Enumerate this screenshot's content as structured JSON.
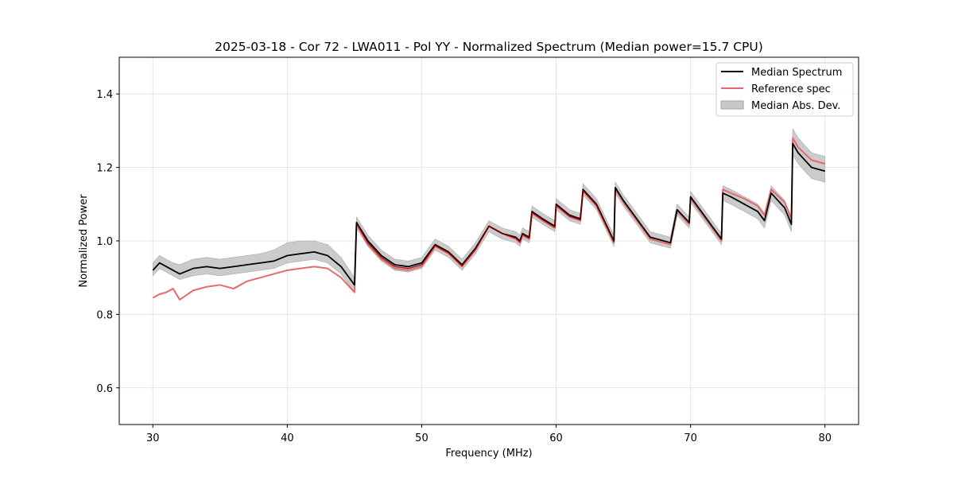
{
  "chart_data": {
    "type": "line",
    "title": "2025-03-18 - Cor 72 - LWA011 - Pol YY - Normalized Spectrum (Median power=15.7 CPU)",
    "xlabel": "Frequency (MHz)",
    "ylabel": "Normalized Power",
    "xlim": [
      27.5,
      82.5
    ],
    "ylim": [
      0.5,
      1.5
    ],
    "xticks": [
      30,
      40,
      50,
      60,
      70,
      80
    ],
    "yticks": [
      0.6,
      0.8,
      1.0,
      1.2,
      1.4
    ],
    "xtick_labels": [
      "30",
      "40",
      "50",
      "60",
      "70",
      "80"
    ],
    "ytick_labels": [
      "0.6",
      "0.8",
      "1.0",
      "1.2",
      "1.4"
    ],
    "grid": true,
    "legend_position": "top-right",
    "legend": [
      "Median Spectrum",
      "Reference spec",
      "Median Abs. Dev."
    ],
    "colors": {
      "median": "#000000",
      "reference": "#e8696b",
      "mad": "#c8c8c8",
      "overlap": "#8b0000"
    },
    "series": [
      {
        "name": "Median Spectrum",
        "x": [
          30,
          30.5,
          31,
          31.5,
          32,
          33,
          34,
          35,
          36,
          37,
          38,
          39,
          40,
          41,
          42,
          43,
          44,
          45,
          45.15,
          46,
          47,
          48,
          49,
          50,
          51,
          52,
          53,
          54,
          55,
          56,
          57,
          57.3,
          57.5,
          58,
          58.2,
          59,
          59.9,
          60,
          61,
          61.8,
          62,
          63,
          64.3,
          64.4,
          65,
          66,
          67,
          68,
          68.5,
          69,
          69.9,
          70,
          71,
          72.3,
          72.4,
          73,
          74,
          75,
          75.5,
          76,
          77,
          77.5,
          77.6,
          78,
          79,
          80
        ],
        "y": [
          0.92,
          0.94,
          0.93,
          0.92,
          0.91,
          0.925,
          0.93,
          0.925,
          0.93,
          0.935,
          0.94,
          0.945,
          0.96,
          0.965,
          0.97,
          0.96,
          0.93,
          0.88,
          1.05,
          1.0,
          0.96,
          0.935,
          0.93,
          0.94,
          0.99,
          0.97,
          0.935,
          0.98,
          1.04,
          1.02,
          1.01,
          1.0,
          1.02,
          1.01,
          1.08,
          1.06,
          1.04,
          1.1,
          1.07,
          1.06,
          1.14,
          1.1,
          1.0,
          1.145,
          1.11,
          1.06,
          1.01,
          1.0,
          0.995,
          1.085,
          1.05,
          1.12,
          1.07,
          1.005,
          1.13,
          1.12,
          1.1,
          1.08,
          1.055,
          1.13,
          1.09,
          1.045,
          1.265,
          1.24,
          1.2,
          1.19
        ]
      },
      {
        "name": "Reference spec",
        "x": [
          30,
          30.5,
          31,
          31.5,
          32,
          33,
          34,
          35,
          36,
          37,
          38,
          39,
          40,
          41,
          42,
          43,
          44,
          45,
          45.15,
          46,
          47,
          48,
          49,
          50,
          51,
          52,
          53,
          54,
          55,
          56,
          57,
          57.3,
          57.5,
          58,
          58.2,
          59,
          59.9,
          60,
          61,
          61.8,
          62,
          63,
          64.3,
          64.4,
          65,
          66,
          67,
          68,
          68.5,
          69,
          69.9,
          70,
          71,
          72.3,
          72.4,
          73,
          74,
          75,
          75.5,
          76,
          77,
          77.5,
          77.6,
          78,
          79,
          80
        ],
        "y": [
          0.845,
          0.855,
          0.86,
          0.87,
          0.84,
          0.865,
          0.875,
          0.88,
          0.87,
          0.89,
          0.9,
          0.91,
          0.92,
          0.925,
          0.93,
          0.925,
          0.9,
          0.86,
          1.045,
          0.99,
          0.95,
          0.925,
          0.92,
          0.93,
          0.985,
          0.965,
          0.93,
          0.975,
          1.04,
          1.02,
          1.005,
          0.995,
          1.015,
          1.005,
          1.075,
          1.055,
          1.035,
          1.095,
          1.065,
          1.055,
          1.135,
          1.095,
          0.995,
          1.14,
          1.105,
          1.055,
          1.005,
          0.995,
          0.99,
          1.08,
          1.045,
          1.115,
          1.065,
          1.0,
          1.14,
          1.13,
          1.115,
          1.095,
          1.07,
          1.14,
          1.105,
          1.06,
          1.28,
          1.255,
          1.22,
          1.21
        ]
      },
      {
        "name": "Median Abs. Dev.",
        "x": [
          30,
          30.5,
          31,
          31.5,
          32,
          33,
          34,
          35,
          36,
          37,
          38,
          39,
          40,
          41,
          42,
          43,
          44,
          45,
          45.15,
          46,
          47,
          48,
          49,
          50,
          51,
          52,
          53,
          54,
          55,
          56,
          57,
          57.3,
          57.5,
          58,
          58.2,
          59,
          59.9,
          60,
          61,
          61.8,
          62,
          63,
          64.3,
          64.4,
          65,
          66,
          67,
          68,
          68.5,
          69,
          69.9,
          70,
          71,
          72.3,
          72.4,
          73,
          74,
          75,
          75.5,
          76,
          77,
          77.5,
          77.6,
          78,
          79,
          80
        ],
        "lower": [
          0.905,
          0.925,
          0.915,
          0.905,
          0.895,
          0.905,
          0.91,
          0.905,
          0.91,
          0.915,
          0.92,
          0.925,
          0.94,
          0.945,
          0.95,
          0.94,
          0.91,
          0.86,
          1.035,
          0.985,
          0.945,
          0.92,
          0.915,
          0.925,
          0.975,
          0.955,
          0.92,
          0.965,
          1.025,
          1.005,
          0.995,
          0.985,
          1.005,
          0.995,
          1.065,
          1.045,
          1.025,
          1.085,
          1.055,
          1.045,
          1.125,
          1.085,
          0.985,
          1.13,
          1.095,
          1.045,
          0.995,
          0.985,
          0.98,
          1.07,
          1.035,
          1.105,
          1.055,
          0.99,
          1.11,
          1.1,
          1.08,
          1.06,
          1.035,
          1.11,
          1.07,
          1.025,
          1.235,
          1.21,
          1.17,
          1.16
        ],
        "upper": [
          0.94,
          0.96,
          0.95,
          0.94,
          0.935,
          0.95,
          0.955,
          0.95,
          0.955,
          0.96,
          0.965,
          0.975,
          0.995,
          1.0,
          1.0,
          0.99,
          0.955,
          0.9,
          1.065,
          1.015,
          0.975,
          0.95,
          0.945,
          0.955,
          1.005,
          0.985,
          0.95,
          0.995,
          1.055,
          1.035,
          1.025,
          1.015,
          1.035,
          1.025,
          1.095,
          1.075,
          1.055,
          1.115,
          1.085,
          1.075,
          1.155,
          1.115,
          1.015,
          1.16,
          1.125,
          1.075,
          1.025,
          1.015,
          1.01,
          1.1,
          1.065,
          1.135,
          1.085,
          1.02,
          1.15,
          1.14,
          1.12,
          1.1,
          1.075,
          1.15,
          1.11,
          1.065,
          1.305,
          1.28,
          1.24,
          1.23
        ]
      }
    ]
  }
}
